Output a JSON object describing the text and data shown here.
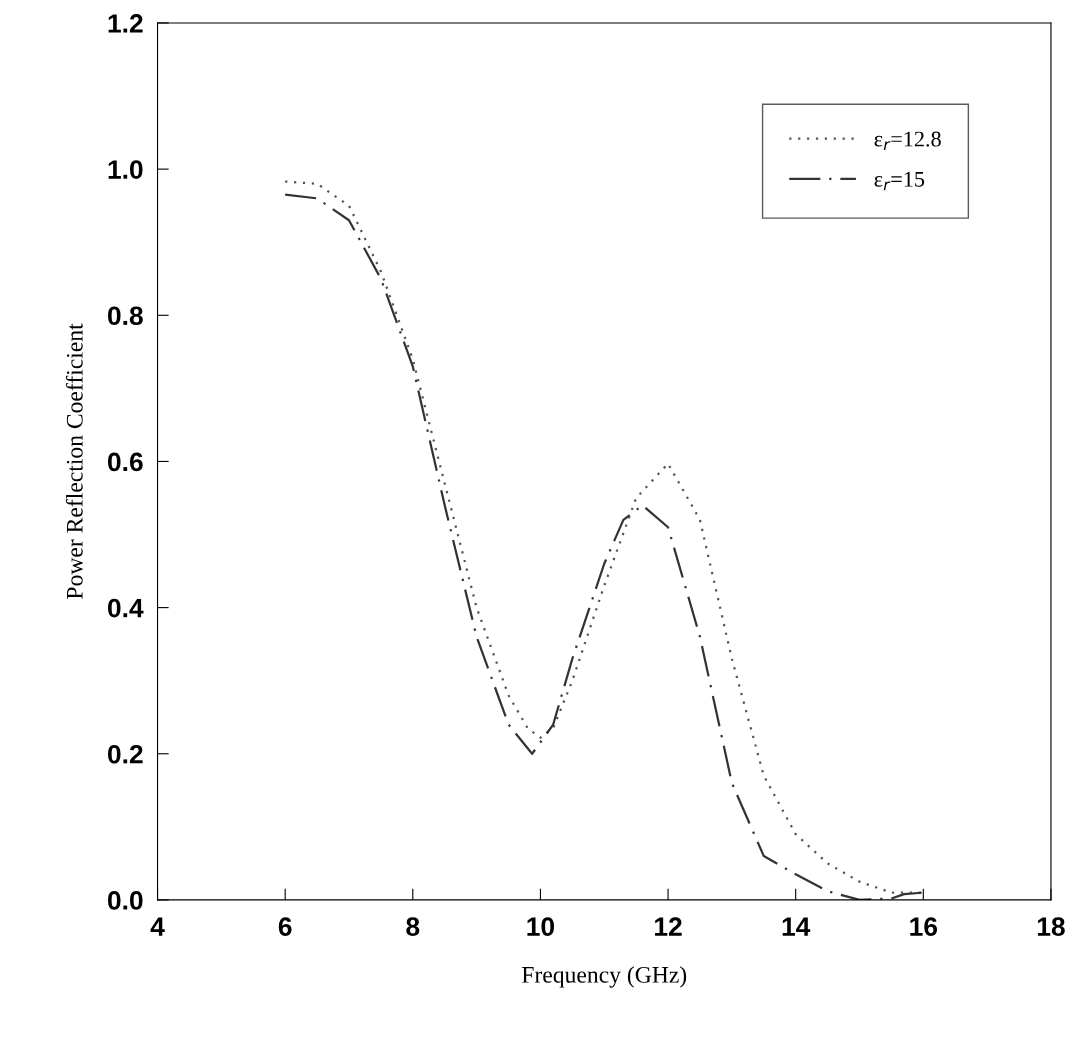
{
  "chart_data": {
    "type": "line",
    "xlabel": "Frequency (GHz)",
    "ylabel": "Power Reflection Coefficient",
    "xlim": [
      4,
      18
    ],
    "xticks": [
      4,
      6,
      8,
      10,
      12,
      14,
      16,
      18
    ],
    "ylim": [
      0,
      1.2
    ],
    "yticks": [
      {
        "value": 0,
        "label": "0.0"
      },
      0.2,
      0.4,
      0.6,
      0.8,
      {
        "value": 1,
        "label": "1.0"
      },
      1.2
    ],
    "grid": false,
    "legend": "top right",
    "series": [
      {
        "name": "ε$_{r}$=12.8",
        "color": "#555555",
        "line_style": "dotted",
        "x": [
          6,
          6.5,
          7,
          7.5,
          8,
          8.5,
          9,
          9.5,
          9.8,
          10,
          10.2,
          10.5,
          11,
          11.5,
          12,
          12.5,
          13,
          13.5,
          14,
          14.5,
          15,
          15.5,
          16
        ],
        "values": [
          0.983,
          0.98,
          0.95,
          0.86,
          0.74,
          0.57,
          0.4,
          0.28,
          0.235,
          0.222,
          0.235,
          0.3,
          0.43,
          0.55,
          0.597,
          0.52,
          0.33,
          0.17,
          0.09,
          0.05,
          0.025,
          0.01,
          0.01
        ]
      },
      {
        "name": "ε$_{r}$=15",
        "color": "#333333",
        "line_style": "dashdot",
        "x": [
          6,
          6.5,
          7,
          7.5,
          8,
          8.5,
          9,
          9.5,
          9.87,
          10.2,
          10.5,
          11,
          11.3,
          11.6,
          12,
          12.5,
          13,
          13.5,
          14,
          14.5,
          15,
          15.5,
          15.7,
          16
        ],
        "values": [
          0.965,
          0.96,
          0.93,
          0.85,
          0.73,
          0.54,
          0.36,
          0.24,
          0.2,
          0.24,
          0.33,
          0.46,
          0.52,
          0.54,
          0.51,
          0.36,
          0.16,
          0.06,
          0.035,
          0.012,
          0.0,
          0.002,
          0.008,
          0.01
        ]
      }
    ]
  }
}
